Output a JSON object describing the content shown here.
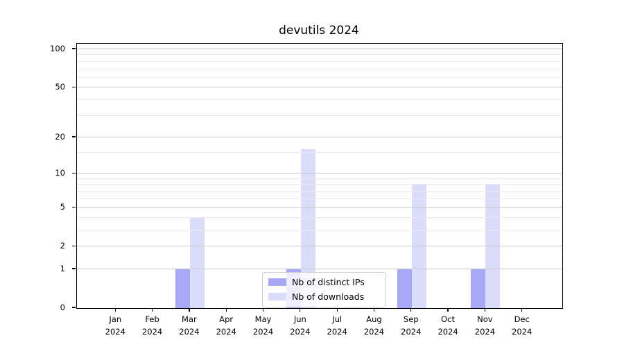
{
  "chart_data": {
    "type": "bar",
    "title": "devutils 2024",
    "categories": [
      "Jan",
      "Feb",
      "Mar",
      "Apr",
      "May",
      "Jun",
      "Jul",
      "Aug",
      "Sep",
      "Oct",
      "Nov",
      "Dec"
    ],
    "year_label": "2024",
    "series": [
      {
        "name": "Nb of distinct IPs",
        "color": "#a8a8f7",
        "values": [
          0,
          0,
          1,
          0,
          0,
          1,
          0,
          0,
          1,
          0,
          1,
          0
        ]
      },
      {
        "name": "Nb of downloads",
        "color": "#dbdbfa",
        "values": [
          0,
          0,
          4,
          0,
          0,
          16,
          0,
          0,
          8,
          0,
          8,
          0
        ]
      }
    ],
    "yscale": "log1p",
    "ylim": [
      0,
      110.5
    ],
    "xlabel": "",
    "ylabel": "",
    "y_major_ticks": [
      0,
      1,
      2,
      5,
      10,
      20,
      50,
      100
    ],
    "y_minor_ticks": [
      3,
      4,
      6,
      7,
      8,
      9,
      15,
      30,
      40,
      60,
      70,
      80,
      90
    ],
    "grid": "on",
    "legend_position": "lower center",
    "colors": {
      "major_grid": "#c8c8c8",
      "minor_grid": "#ebebeb",
      "axis": "#000000",
      "text": "#000000"
    }
  }
}
